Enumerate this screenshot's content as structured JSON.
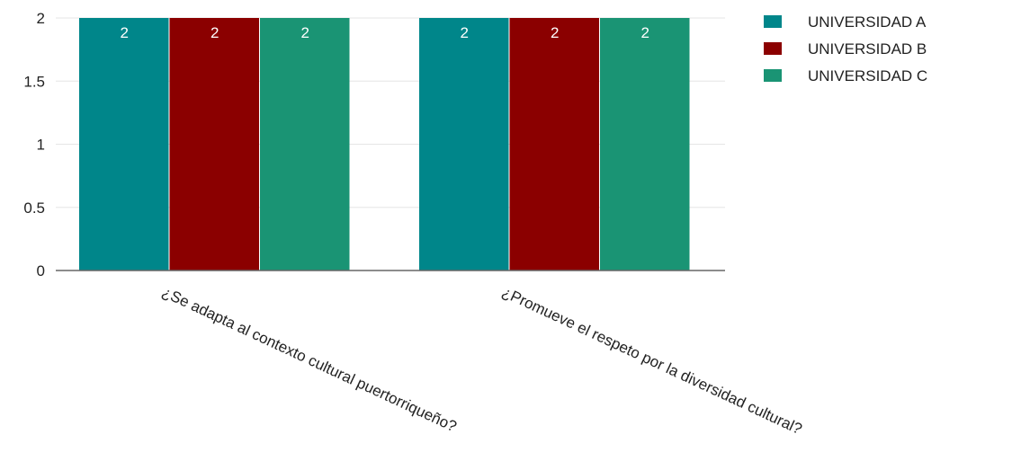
{
  "chart_data": {
    "type": "bar",
    "categories": [
      "¿Se adapta al contexto cultural puertorriqueño?",
      "¿Promueve el respeto por la diversidad cultural?"
    ],
    "series": [
      {
        "name": "UNIVERSIDAD A",
        "values": [
          2,
          2
        ],
        "color": "#00868a"
      },
      {
        "name": "UNIVERSIDAD B",
        "values": [
          2,
          2
        ],
        "color": "#8b0000"
      },
      {
        "name": "UNIVERSIDAD C",
        "values": [
          2,
          2
        ],
        "color": "#1a9474"
      }
    ],
    "yticks": [
      "0",
      "0.5",
      "1",
      "1.5",
      "2"
    ],
    "ylim": [
      0,
      2
    ],
    "title": "",
    "xlabel": "",
    "ylabel": "",
    "grid": true,
    "legend_position": "top-right",
    "data_labels": true
  }
}
